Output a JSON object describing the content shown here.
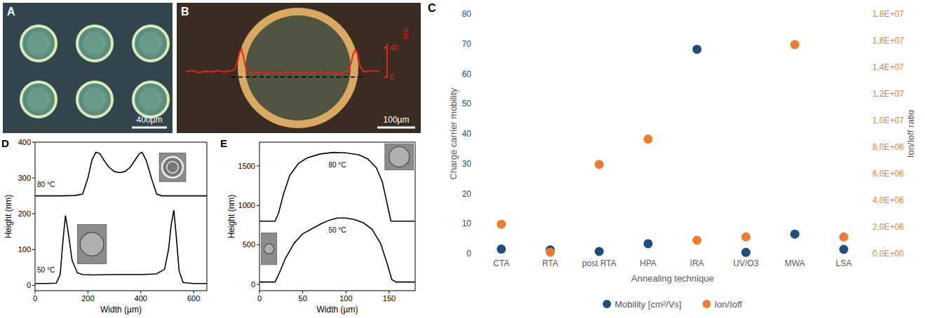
{
  "panels": [
    {
      "letter": "A",
      "scale_bar": "400µm"
    },
    {
      "letter": "B",
      "scale_bar": "100µm",
      "profile": {
        "unit": "nm",
        "color": "#e8221b",
        "ylim": [
          0,
          45
        ],
        "ticks": [
          0,
          40
        ],
        "x": [
          0,
          15,
          30,
          45,
          60,
          75,
          90,
          105,
          115,
          122,
          128,
          132,
          136,
          142,
          150,
          165,
          180,
          195,
          210,
          225,
          240,
          255,
          270,
          285,
          300,
          315,
          330,
          345,
          360,
          375,
          385,
          392,
          398,
          403,
          408,
          414,
          422,
          432,
          445,
          460
        ],
        "values": [
          7,
          9,
          6,
          8,
          7,
          9,
          7,
          8,
          10,
          20,
          34,
          38,
          30,
          14,
          6,
          5,
          7,
          4,
          6,
          5,
          7,
          6,
          4,
          6,
          5,
          7,
          5,
          6,
          4,
          6,
          8,
          18,
          32,
          37,
          33,
          15,
          8,
          7,
          9,
          7
        ]
      }
    }
  ],
  "chart_data": [
    {
      "panel": "C",
      "type": "scatter",
      "categories": [
        "CTA",
        "RTA",
        "post RTA",
        "HPA",
        "IRA",
        "UV/O3",
        "MWA",
        "LSA"
      ],
      "xlabel": "Annealing technique",
      "ylabel": "Charge carrier mobility",
      "y2label": "Ion/Ioff ratio",
      "ylim": [
        0,
        80
      ],
      "yticks": [
        0,
        10,
        20,
        30,
        40,
        50,
        60,
        70,
        80
      ],
      "y2lim": [
        0,
        18000000
      ],
      "y2ticks": [
        {
          "value": 0,
          "label": "0,0E+00"
        },
        {
          "value": 2000000,
          "label": "2,0E+06"
        },
        {
          "value": 4000000,
          "label": "4,0E+06"
        },
        {
          "value": 6000000,
          "label": "6,0E+06"
        },
        {
          "value": 8000000,
          "label": "8,0E+06"
        },
        {
          "value": 10000000,
          "label": "1,0E+07"
        },
        {
          "value": 12000000,
          "label": "1,2E+07"
        },
        {
          "value": 14000000,
          "label": "1,4E+07"
        },
        {
          "value": 16000000,
          "label": "1,6E+07"
        },
        {
          "value": 18000000,
          "label": "1,8E+07"
        }
      ],
      "legend": "bottom",
      "grid": false,
      "series": [
        {
          "name": "Mobility [cm²/Vs]",
          "color": "#1f4e79",
          "marker": "circle",
          "values": [
            1.5,
            1.2,
            0.7,
            3.3,
            68.2,
            0.4,
            6.5,
            1.4
          ]
        },
        {
          "name": "Ion/Ioff",
          "color": "#ed7d31",
          "marker": "circle",
          "axis": "y2",
          "values": [
            2200000,
            100000,
            6700000,
            8600000,
            1000000,
            1250000,
            15700000,
            1250000
          ]
        }
      ]
    },
    {
      "panel": "D",
      "type": "line",
      "xlabel": "Width (µm)",
      "ylabel": "Height (nm)",
      "xlim": [
        0,
        650
      ],
      "xticks": [
        0,
        200,
        400,
        600
      ],
      "ylim": [
        -15,
        400
      ],
      "yticks": [
        0,
        100,
        200,
        300,
        400
      ],
      "grid": false,
      "series": [
        {
          "name": "80 °C",
          "color": "#000000",
          "line_style": "solid",
          "x": [
            0,
            50,
            100,
            150,
            180,
            200,
            215,
            230,
            245,
            260,
            280,
            300,
            320,
            340,
            360,
            380,
            395,
            405,
            420,
            440,
            460,
            480,
            520,
            560,
            600,
            650
          ],
          "values": [
            250,
            250,
            250,
            251,
            255,
            300,
            350,
            372,
            368,
            350,
            330,
            318,
            315,
            318,
            330,
            352,
            368,
            372,
            350,
            300,
            255,
            250,
            250,
            250,
            250,
            250
          ]
        },
        {
          "name": "50 °C",
          "color": "#000000",
          "line_style": "solid",
          "x": [
            0,
            40,
            80,
            95,
            105,
            115,
            125,
            140,
            160,
            180,
            220,
            300,
            400,
            460,
            490,
            505,
            515,
            525,
            535,
            545,
            560,
            600,
            650
          ],
          "values": [
            5,
            5,
            6,
            30,
            120,
            195,
            150,
            70,
            35,
            30,
            29,
            30,
            30,
            32,
            45,
            100,
            170,
            210,
            130,
            40,
            8,
            5,
            5
          ]
        }
      ]
    },
    {
      "panel": "E",
      "type": "line",
      "xlabel": "Width (µm)",
      "ylabel": "Height (nm)",
      "xlim": [
        0,
        180
      ],
      "xticks": [
        0,
        50,
        100,
        150
      ],
      "ylim": [
        -80,
        1800
      ],
      "yticks": [
        0,
        500,
        1000,
        1500
      ],
      "grid": false,
      "series": [
        {
          "name": "80 °C",
          "color": "#000000",
          "line_style": "solid",
          "x": [
            0,
            10,
            18,
            22,
            28,
            35,
            45,
            55,
            70,
            85,
            100,
            115,
            125,
            135,
            142,
            148,
            152,
            160,
            170,
            180
          ],
          "values": [
            800,
            800,
            800,
            900,
            1150,
            1380,
            1530,
            1600,
            1650,
            1670,
            1665,
            1640,
            1590,
            1480,
            1300,
            1000,
            800,
            800,
            800,
            800
          ]
        },
        {
          "name": "50 °C",
          "color": "#000000",
          "line_style": "solid",
          "x": [
            0,
            10,
            18,
            22,
            30,
            40,
            50,
            60,
            70,
            80,
            90,
            100,
            110,
            120,
            130,
            140,
            148,
            153,
            158,
            170,
            180
          ],
          "values": [
            30,
            30,
            30,
            120,
            330,
            520,
            640,
            700,
            760,
            810,
            840,
            840,
            820,
            780,
            700,
            520,
            250,
            60,
            30,
            30,
            30
          ]
        }
      ]
    }
  ]
}
